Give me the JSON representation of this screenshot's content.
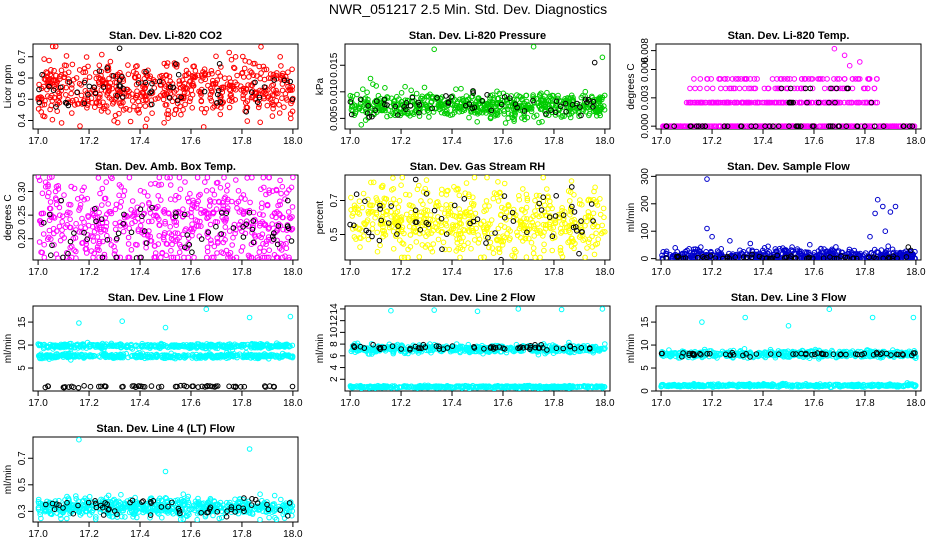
{
  "figure": {
    "title": "NWR_051217  2.5 Min. Std. Dev. Diagnostics"
  },
  "chart_data": [
    {
      "type": "scatter",
      "title": "Stan. Dev. Li-820 CO2",
      "ylabel": "Licor ppm",
      "xlim": [
        16.98,
        18.02
      ],
      "ylim": [
        0.36,
        0.76
      ],
      "xticks": [
        "17.0",
        "17.2",
        "17.4",
        "17.6",
        "17.8",
        "18.0"
      ],
      "yticks": [
        "0.4",
        "0.5",
        "0.6",
        "0.7"
      ],
      "series": [
        {
          "name": "all",
          "color": "#ff0000",
          "n": 600,
          "base": 0.55,
          "spread": 0.07,
          "seed": 11,
          "outliers": [
            [
              17.25,
              0.71
            ],
            [
              17.75,
              0.72
            ],
            [
              17.95,
              0.7
            ],
            [
              17.65,
              0.37
            ]
          ]
        },
        {
          "name": "highlight",
          "color": "#000000",
          "n": 60,
          "base": 0.55,
          "spread": 0.06,
          "seed": 12,
          "outliers": [
            [
              17.32,
              0.74
            ]
          ]
        }
      ]
    },
    {
      "type": "scatter",
      "title": "Stan. Dev. Li-820 Pressure",
      "ylabel": "kPa",
      "xlim": [
        16.98,
        18.02
      ],
      "ylim": [
        0.003,
        0.019
      ],
      "xticks": [
        "17.0",
        "17.2",
        "17.4",
        "17.6",
        "17.8",
        "18.0"
      ],
      "yticks": [
        "0.005",
        "0.010",
        "0.015"
      ],
      "series": [
        {
          "name": "all",
          "color": "#00cc00",
          "n": 600,
          "base": 0.0075,
          "spread": 0.0012,
          "seed": 21,
          "outliers": [
            [
              17.33,
              0.018
            ],
            [
              17.72,
              0.0185
            ],
            [
              17.99,
              0.0165
            ],
            [
              17.08,
              0.0125
            ],
            [
              17.05,
              0.0105
            ]
          ]
        },
        {
          "name": "highlight",
          "color": "#000000",
          "n": 60,
          "base": 0.0075,
          "spread": 0.0012,
          "seed": 22,
          "outliers": [
            [
              17.96,
              0.0155
            ]
          ]
        }
      ]
    },
    {
      "type": "scatter",
      "title": "Stan. Dev. Li-820 Temp.",
      "ylabel": "degrees C",
      "xlim": [
        16.98,
        18.02
      ],
      "ylim": [
        -0.0003,
        0.0087
      ],
      "xticks": [
        "17.0",
        "17.2",
        "17.4",
        "17.6",
        "17.8",
        "18.0"
      ],
      "yticks": [
        "0.000",
        "0.003",
        "0.006",
        "0.008"
      ],
      "series": [
        {
          "name": "all",
          "color": "#ff00ff",
          "n": 600,
          "levels": [
            0,
            0,
            0,
            0,
            0,
            0.0025,
            0.0025,
            0.0025,
            0.004,
            0.005
          ],
          "seed": 31,
          "level_mid_range": [
            17.1,
            17.85
          ],
          "outliers": [
            [
              17.68,
              0.0082
            ],
            [
              17.72,
              0.0075
            ],
            [
              17.78,
              0.0068
            ],
            [
              17.74,
              0.0064
            ]
          ]
        },
        {
          "name": "highlight",
          "color": "#000000",
          "n": 60,
          "levels": [
            0,
            0,
            0,
            0,
            0.0025,
            0.004
          ],
          "seed": 32,
          "level_mid_range": [
            17.45,
            17.85
          ],
          "outliers": []
        }
      ]
    },
    {
      "type": "scatter",
      "title": "Stan. Dev. Amb. Box Temp.",
      "ylabel": "degrees C",
      "xlim": [
        16.98,
        18.02
      ],
      "ylim": [
        0.155,
        0.335
      ],
      "xticks": [
        "17.0",
        "17.2",
        "17.4",
        "17.6",
        "17.8",
        "18.0"
      ],
      "yticks": [
        "0.20",
        "0.25",
        "0.30"
      ],
      "series": [
        {
          "name": "all",
          "color": "#ff00ff",
          "n": 600,
          "base": 0.23,
          "spread": 0.05,
          "seed": 41,
          "outliers": [
            [
              18.0,
              0.33
            ],
            [
              17.03,
              0.31
            ]
          ]
        },
        {
          "name": "highlight",
          "color": "#000000",
          "n": 60,
          "base": 0.215,
          "spread": 0.035,
          "seed": 42,
          "outliers": []
        }
      ]
    },
    {
      "type": "scatter",
      "title": "Stan. Dev. Gas Stream RH",
      "ylabel": "percent",
      "xlim": [
        16.98,
        18.02
      ],
      "ylim": [
        0.35,
        0.85
      ],
      "xticks": [
        "17.0",
        "17.2",
        "17.4",
        "17.6",
        "17.8",
        "18.0"
      ],
      "yticks": [
        "0.5",
        "0.7"
      ],
      "series": [
        {
          "name": "all",
          "color": "#ffff00",
          "n": 600,
          "base": 0.58,
          "spread": 0.1,
          "seed": 51,
          "outliers": [
            [
              17.3,
              0.82
            ],
            [
              17.58,
              0.81
            ],
            [
              17.2,
              0.79
            ]
          ]
        },
        {
          "name": "highlight",
          "color": "#000000",
          "n": 60,
          "base": 0.58,
          "spread": 0.09,
          "seed": 52,
          "outliers": [
            [
              17.87,
              0.78
            ]
          ]
        }
      ]
    },
    {
      "type": "scatter",
      "title": "Stan. Dev. Sample Flow",
      "ylabel": "ml/min",
      "xlim": [
        16.98,
        18.02
      ],
      "ylim": [
        -5,
        305
      ],
      "xticks": [
        "17.0",
        "17.2",
        "17.4",
        "17.6",
        "17.8",
        "18.0"
      ],
      "yticks": [
        "0",
        "100",
        "200",
        "300"
      ],
      "series": [
        {
          "name": "all",
          "color": "#0000cc",
          "n": 500,
          "base": 8,
          "spread": 14,
          "seed": 61,
          "min": 0,
          "outliers": [
            [
              17.18,
              290
            ],
            [
              17.18,
              110
            ],
            [
              17.2,
              80
            ],
            [
              17.27,
              65
            ],
            [
              17.35,
              55
            ],
            [
              17.42,
              45
            ],
            [
              17.85,
              215
            ],
            [
              17.87,
              190
            ],
            [
              17.84,
              165
            ],
            [
              17.9,
              170
            ],
            [
              17.92,
              190
            ],
            [
              17.82,
              80
            ],
            [
              17.88,
              100
            ]
          ]
        },
        {
          "name": "highlight",
          "color": "#000000",
          "n": 60,
          "base": 3,
          "spread": 4,
          "seed": 62,
          "min": 0,
          "outliers": [
            [
              17.98,
              30
            ],
            [
              17.97,
              42
            ]
          ]
        }
      ]
    },
    {
      "type": "scatter",
      "title": "Stan. Dev. Line 1 Flow",
      "ylabel": "ml/min",
      "xlim": [
        16.98,
        18.02
      ],
      "ylim": [
        0,
        18.5
      ],
      "xticks": [
        "17.0",
        "17.2",
        "17.4",
        "17.6",
        "17.8",
        "18.0"
      ],
      "yticks": [
        "5",
        "10",
        "15"
      ],
      "series": [
        {
          "name": "band-high",
          "color": "#00ffff",
          "n": 400,
          "base": 9.8,
          "spread": 0.25,
          "seed": 71,
          "outliers": [
            [
              17.16,
              14.8
            ],
            [
              17.33,
              15.2
            ],
            [
              17.5,
              13.8
            ],
            [
              17.66,
              17.8
            ],
            [
              17.83,
              16.0
            ],
            [
              17.99,
              16.2
            ]
          ]
        },
        {
          "name": "band-low",
          "color": "#00ffff",
          "n": 400,
          "base": 7.6,
          "spread": 0.25,
          "seed": 72,
          "outliers": []
        },
        {
          "name": "highlight",
          "color": "#000000",
          "n": 60,
          "base": 1.0,
          "spread": 0.1,
          "seed": 73,
          "outliers": []
        }
      ]
    },
    {
      "type": "scatter",
      "title": "Stan. Dev. Line 2 Flow",
      "ylabel": "ml/min",
      "xlim": [
        16.98,
        18.02
      ],
      "ylim": [
        0,
        14.5
      ],
      "xticks": [
        "17.0",
        "17.2",
        "17.4",
        "17.6",
        "17.8",
        "18.0"
      ],
      "yticks": [
        "2",
        "4",
        "6",
        "8",
        "10",
        "12",
        "14"
      ],
      "series": [
        {
          "name": "band-high",
          "color": "#00ffff",
          "n": 500,
          "base": 7.2,
          "spread": 0.35,
          "seed": 81,
          "outliers": [
            [
              17.16,
              13.7
            ],
            [
              17.33,
              13.8
            ],
            [
              17.5,
              13.6
            ],
            [
              17.66,
              14.0
            ],
            [
              17.83,
              13.9
            ],
            [
              17.99,
              14.0
            ]
          ]
        },
        {
          "name": "band-low",
          "color": "#00ffff",
          "n": 400,
          "base": 0.7,
          "spread": 0.1,
          "seed": 82,
          "outliers": []
        },
        {
          "name": "highlight",
          "color": "#000000",
          "n": 60,
          "base": 7.4,
          "spread": 0.2,
          "seed": 83,
          "outliers": []
        }
      ]
    },
    {
      "type": "scatter",
      "title": "Stan. Dev. Line 3 Flow",
      "ylabel": "ml/min",
      "xlim": [
        16.98,
        18.02
      ],
      "ylim": [
        0,
        18.5
      ],
      "xticks": [
        "17.0",
        "17.2",
        "17.4",
        "17.6",
        "17.8",
        "18.0"
      ],
      "yticks": [
        "0",
        "5",
        "10",
        "15"
      ],
      "series": [
        {
          "name": "band-high",
          "color": "#00ffff",
          "n": 500,
          "base": 8.0,
          "spread": 0.4,
          "seed": 91,
          "outliers": [
            [
              17.16,
              15.0
            ],
            [
              17.33,
              16.0
            ],
            [
              17.5,
              14.2
            ],
            [
              17.66,
              17.8
            ],
            [
              17.83,
              16.0
            ],
            [
              17.99,
              16.0
            ]
          ]
        },
        {
          "name": "band-low",
          "color": "#00ffff",
          "n": 400,
          "base": 1.2,
          "spread": 0.15,
          "seed": 92,
          "outliers": []
        },
        {
          "name": "highlight",
          "color": "#000000",
          "n": 60,
          "base": 8.0,
          "spread": 0.2,
          "seed": 93,
          "outliers": []
        }
      ]
    },
    {
      "type": "scatter",
      "title": "Stan. Dev. Line 4 (LT) Flow",
      "ylabel": "ml/min",
      "xlim": [
        16.98,
        18.02
      ],
      "ylim": [
        0.22,
        0.86
      ],
      "xticks": [
        "17.0",
        "17.2",
        "17.4",
        "17.6",
        "17.8",
        "18.0"
      ],
      "yticks": [
        "0.3",
        "0.5",
        "0.7"
      ],
      "series": [
        {
          "name": "all",
          "color": "#00ffff",
          "n": 600,
          "base": 0.33,
          "spread": 0.035,
          "seed": 101,
          "outliers": [
            [
              17.16,
              0.84
            ],
            [
              17.83,
              0.77
            ],
            [
              17.5,
              0.6
            ]
          ]
        },
        {
          "name": "highlight",
          "color": "#000000",
          "n": 60,
          "base": 0.33,
          "spread": 0.03,
          "seed": 102,
          "outliers": []
        }
      ]
    }
  ]
}
